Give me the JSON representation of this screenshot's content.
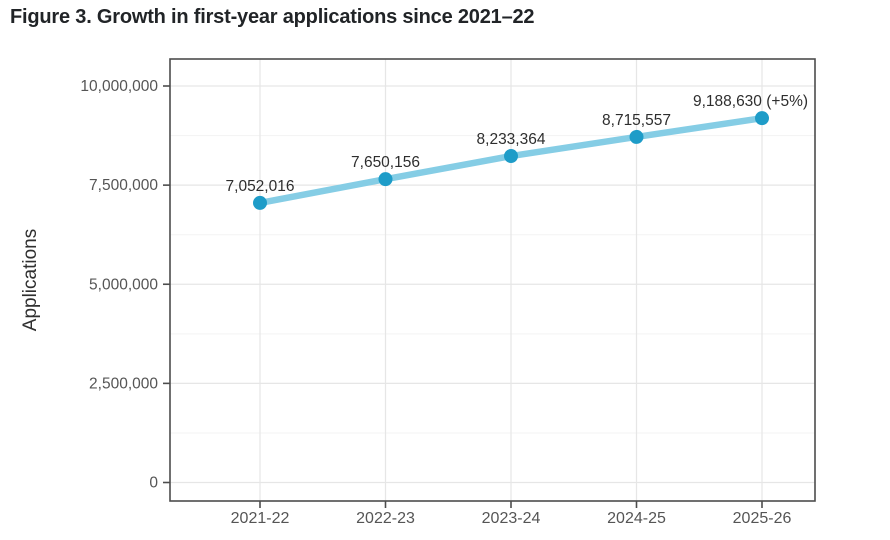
{
  "figure": {
    "title": "Figure 3. Growth in first-year applications since 2021–22"
  },
  "chart_data": {
    "type": "line",
    "title": "Figure 3. Growth in first-year applications since 2021–22",
    "categories": [
      "2021-22",
      "2022-23",
      "2023-24",
      "2024-25",
      "2025-26"
    ],
    "values": [
      7052016,
      7650156,
      8233364,
      8715557,
      9188630
    ],
    "point_labels": [
      "7,052,016",
      "7,650,156",
      "8,233,364",
      "8,715,557",
      "9,188,630 (+5%)"
    ],
    "xlabel": "",
    "ylabel": "Applications",
    "ylim": [
      0,
      10000000
    ],
    "y_ticks": [
      0,
      2500000,
      5000000,
      7500000,
      10000000
    ],
    "y_tick_labels": [
      "0",
      "2,500,000",
      "5,000,000",
      "7,500,000",
      "10,000,000"
    ],
    "grid": "on",
    "grid_minor": "on",
    "legend": "none",
    "colors": {
      "line": "#85cde5",
      "point": "#1e9cc8",
      "panel_border": "#4d4d4d",
      "tick": "#4d4d4d",
      "grid_major": "#e6e6e6",
      "grid_minor": "#f3f3f3",
      "tick_label": "#555555",
      "data_label": "#2e2e2e",
      "axis_title": "#2f2f2f"
    }
  }
}
